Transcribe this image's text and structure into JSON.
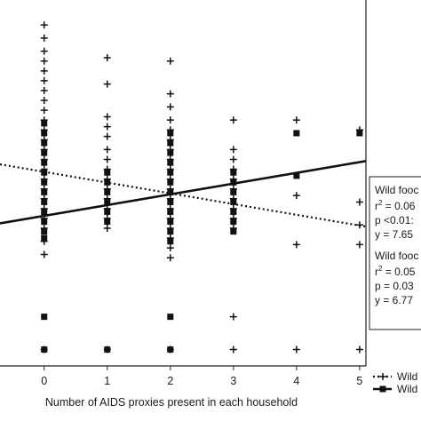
{
  "chart_data": {
    "type": "scatter",
    "xlabel": "Number of AIDS proxies present in each household",
    "x_ticks": [
      "0",
      "1",
      "2",
      "3",
      "4",
      "5"
    ],
    "xlim": [
      -0.7,
      5.1
    ],
    "ylim": [
      0,
      11
    ],
    "grid": false,
    "legend_position": "bottom-right",
    "series": [
      {
        "name": "Wild",
        "marker": "plus",
        "points": [
          [
            0,
            10.4
          ],
          [
            0,
            10.0
          ],
          [
            0,
            9.6
          ],
          [
            0,
            9.3
          ],
          [
            0,
            9.0
          ],
          [
            0,
            8.7
          ],
          [
            0,
            8.4
          ],
          [
            0,
            8.1
          ],
          [
            0,
            7.8
          ],
          [
            0,
            7.5
          ],
          [
            0,
            7.2
          ],
          [
            0,
            6.9
          ],
          [
            0,
            6.6
          ],
          [
            0,
            6.3
          ],
          [
            0,
            6.0
          ],
          [
            0,
            5.7
          ],
          [
            0,
            5.4
          ],
          [
            0,
            5.1
          ],
          [
            0,
            4.8
          ],
          [
            0,
            4.5
          ],
          [
            0,
            4.2
          ],
          [
            0,
            3.8
          ],
          [
            0,
            3.4
          ],
          [
            0,
            0.5
          ],
          [
            1,
            9.4
          ],
          [
            1,
            8.6
          ],
          [
            1,
            7.6
          ],
          [
            1,
            7.3
          ],
          [
            1,
            7.0
          ],
          [
            1,
            6.6
          ],
          [
            1,
            6.3
          ],
          [
            1,
            6.0
          ],
          [
            1,
            5.7
          ],
          [
            1,
            5.4
          ],
          [
            1,
            5.1
          ],
          [
            1,
            4.8
          ],
          [
            1,
            4.5
          ],
          [
            1,
            4.2
          ],
          [
            1,
            0.5
          ],
          [
            2,
            9.3
          ],
          [
            2,
            8.3
          ],
          [
            2,
            7.9
          ],
          [
            2,
            7.5
          ],
          [
            2,
            7.2
          ],
          [
            2,
            6.9
          ],
          [
            2,
            6.6
          ],
          [
            2,
            6.3
          ],
          [
            2,
            6.0
          ],
          [
            2,
            5.7
          ],
          [
            2,
            5.4
          ],
          [
            2,
            5.1
          ],
          [
            2,
            4.8
          ],
          [
            2,
            4.5
          ],
          [
            2,
            4.2
          ],
          [
            2,
            3.9
          ],
          [
            2,
            3.6
          ],
          [
            2,
            3.3
          ],
          [
            2,
            0.5
          ],
          [
            3,
            7.5
          ],
          [
            3,
            6.6
          ],
          [
            3,
            6.3
          ],
          [
            3,
            6.0
          ],
          [
            3,
            5.7
          ],
          [
            3,
            5.4
          ],
          [
            3,
            5.1
          ],
          [
            3,
            4.8
          ],
          [
            3,
            4.5
          ],
          [
            3,
            4.2
          ],
          [
            3,
            1.5
          ],
          [
            3,
            0.5
          ],
          [
            4,
            7.5
          ],
          [
            4,
            5.2
          ],
          [
            4,
            3.7
          ],
          [
            4,
            0.5
          ],
          [
            5,
            7.2
          ],
          [
            5,
            5.0
          ],
          [
            5,
            4.3
          ],
          [
            5,
            3.7
          ],
          [
            5,
            0.5
          ]
        ]
      },
      {
        "name": "Wild",
        "marker": "square",
        "points": [
          [
            0,
            7.4
          ],
          [
            0,
            7.1
          ],
          [
            0,
            6.8
          ],
          [
            0,
            6.5
          ],
          [
            0,
            6.2
          ],
          [
            0,
            5.9
          ],
          [
            0,
            5.6
          ],
          [
            0,
            5.3
          ],
          [
            0,
            5.0
          ],
          [
            0,
            4.7
          ],
          [
            0,
            4.4
          ],
          [
            0,
            4.1
          ],
          [
            0,
            3.9
          ],
          [
            0,
            1.5
          ],
          [
            0,
            0.5
          ],
          [
            1,
            5.9
          ],
          [
            1,
            5.6
          ],
          [
            1,
            5.3
          ],
          [
            1,
            5.0
          ],
          [
            1,
            4.7
          ],
          [
            1,
            4.4
          ],
          [
            1,
            0.5
          ],
          [
            2,
            7.1
          ],
          [
            2,
            6.8
          ],
          [
            2,
            6.5
          ],
          [
            2,
            6.2
          ],
          [
            2,
            5.9
          ],
          [
            2,
            5.6
          ],
          [
            2,
            5.3
          ],
          [
            2,
            5.0
          ],
          [
            2,
            4.7
          ],
          [
            2,
            4.4
          ],
          [
            2,
            4.1
          ],
          [
            2,
            3.8
          ],
          [
            2,
            1.5
          ],
          [
            2,
            0.5
          ],
          [
            3,
            5.9
          ],
          [
            3,
            5.6
          ],
          [
            3,
            5.3
          ],
          [
            3,
            5.0
          ],
          [
            3,
            4.7
          ],
          [
            3,
            4.4
          ],
          [
            3,
            4.1
          ],
          [
            4,
            7.1
          ],
          [
            4,
            5.8
          ],
          [
            5,
            7.1
          ]
        ]
      }
    ],
    "trend_lines": [
      {
        "style": "dotted",
        "x": [
          -0.7,
          5.1
        ],
        "y": [
          6.15,
          4.25
        ]
      },
      {
        "style": "solid",
        "x": [
          -0.7,
          5.1
        ],
        "y": [
          4.35,
          6.25
        ]
      }
    ],
    "annotations": [
      {
        "lines": [
          "Wild fooc",
          "r² = 0.06",
          "p <0.01:",
          "y = 7.65"
        ]
      },
      {
        "lines": [
          "Wild fooc",
          "r² = 0.05",
          "p = 0.03",
          "y = 6.77"
        ]
      }
    ],
    "legend": [
      {
        "label": "Wild",
        "style": "dotted",
        "marker": "plus"
      },
      {
        "label": "Wild",
        "style": "solid",
        "marker": "square"
      }
    ]
  }
}
